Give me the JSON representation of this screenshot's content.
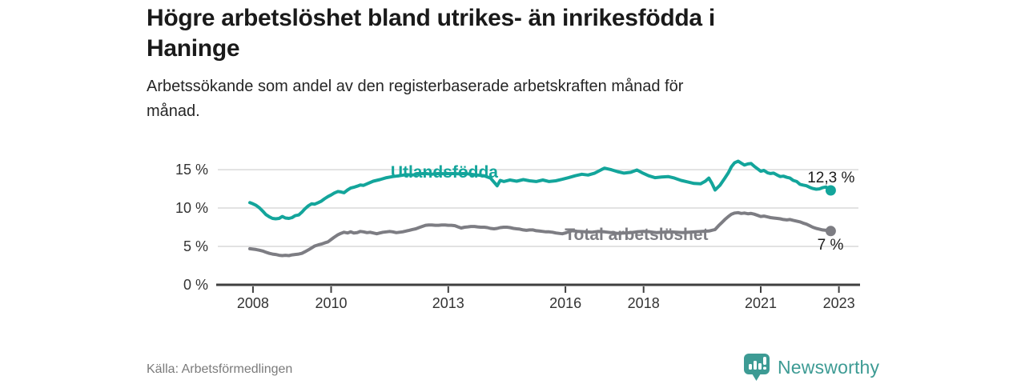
{
  "header": {
    "title_lines": [
      "Högre arbetslöshet bland utrikes- än inrikesfödda i",
      "Haninge"
    ],
    "subtitle_lines": [
      "Arbetssökande som andel av den registerbaserade arbetskraften månad för",
      "månad."
    ]
  },
  "footer": {
    "source": "Källa: Arbetsförmedlingen",
    "brand": "Newsworthy",
    "logo_icon": "bar-chart-speech-bubble-icon"
  },
  "colors": {
    "accent_teal": "#13a59b",
    "series_gray": "#7d7d83",
    "grid": "#d9d9d9",
    "axis": "#3f3f3f",
    "tick_text": "#333333",
    "value_label_text": "#1a1a1a",
    "source_text": "#7b7b7b",
    "brand_teal": "#3d9b94"
  },
  "chart_data": {
    "type": "line",
    "title": "",
    "xlabel": "",
    "ylabel": "",
    "x_unit": "year (monthly series)",
    "xlim": [
      2007.1,
      2023.5
    ],
    "ylim": [
      0,
      17.3
    ],
    "grid": "horizontal",
    "legend_position": "inline-labels",
    "x_ticks": [
      2008,
      2010,
      2013,
      2016,
      2018,
      2021,
      2023
    ],
    "x_tick_labels": [
      "2008",
      "2010",
      "2013",
      "2016",
      "2018",
      "2021",
      "2023"
    ],
    "y_ticks": [
      0,
      5,
      10,
      15
    ],
    "y_tick_labels": [
      "0 %",
      "5 %",
      "10 %",
      "15 %"
    ],
    "series": [
      {
        "name": "Utlandsfödda",
        "color": "#13a59b",
        "end_label": "12,3 %",
        "end_value": 12.3,
        "label_pos": [
          2012.9,
          13.95
        ],
        "end_label_offset": [
          30,
          -10
        ],
        "points": [
          [
            2007.92,
            10.7
          ],
          [
            2008.0,
            10.55
          ],
          [
            2008.08,
            10.35
          ],
          [
            2008.17,
            10.0
          ],
          [
            2008.25,
            9.6
          ],
          [
            2008.33,
            9.15
          ],
          [
            2008.42,
            8.85
          ],
          [
            2008.5,
            8.65
          ],
          [
            2008.58,
            8.6
          ],
          [
            2008.67,
            8.65
          ],
          [
            2008.75,
            8.9
          ],
          [
            2008.83,
            8.7
          ],
          [
            2008.92,
            8.65
          ],
          [
            2009.0,
            8.75
          ],
          [
            2009.08,
            9.0
          ],
          [
            2009.17,
            9.1
          ],
          [
            2009.25,
            9.45
          ],
          [
            2009.33,
            9.9
          ],
          [
            2009.42,
            10.3
          ],
          [
            2009.5,
            10.55
          ],
          [
            2009.58,
            10.5
          ],
          [
            2009.67,
            10.7
          ],
          [
            2009.75,
            10.9
          ],
          [
            2009.83,
            11.2
          ],
          [
            2009.92,
            11.5
          ],
          [
            2010.0,
            11.7
          ],
          [
            2010.08,
            11.95
          ],
          [
            2010.17,
            12.15
          ],
          [
            2010.25,
            12.1
          ],
          [
            2010.33,
            12.0
          ],
          [
            2010.42,
            12.35
          ],
          [
            2010.5,
            12.6
          ],
          [
            2010.58,
            12.7
          ],
          [
            2010.67,
            12.85
          ],
          [
            2010.75,
            13.0
          ],
          [
            2010.83,
            12.95
          ],
          [
            2010.92,
            13.15
          ],
          [
            2011.08,
            13.5
          ],
          [
            2011.25,
            13.7
          ],
          [
            2011.42,
            13.95
          ],
          [
            2011.58,
            14.1
          ],
          [
            2011.75,
            14.2
          ],
          [
            2011.92,
            14.35
          ],
          [
            2012.08,
            14.3
          ],
          [
            2012.25,
            14.45
          ],
          [
            2012.42,
            14.5
          ],
          [
            2012.58,
            14.4
          ],
          [
            2012.75,
            14.5
          ],
          [
            2012.92,
            14.45
          ],
          [
            2013.08,
            14.5
          ],
          [
            2013.25,
            14.45
          ],
          [
            2013.42,
            14.5
          ],
          [
            2013.58,
            14.4
          ],
          [
            2013.75,
            14.3
          ],
          [
            2013.92,
            14.2
          ],
          [
            2014.08,
            13.9
          ],
          [
            2014.25,
            12.9
          ],
          [
            2014.33,
            13.6
          ],
          [
            2014.42,
            13.45
          ],
          [
            2014.58,
            13.65
          ],
          [
            2014.75,
            13.5
          ],
          [
            2014.92,
            13.7
          ],
          [
            2015.08,
            13.55
          ],
          [
            2015.25,
            13.45
          ],
          [
            2015.42,
            13.65
          ],
          [
            2015.58,
            13.45
          ],
          [
            2015.75,
            13.55
          ],
          [
            2015.92,
            13.75
          ],
          [
            2016.08,
            13.95
          ],
          [
            2016.25,
            14.2
          ],
          [
            2016.42,
            14.4
          ],
          [
            2016.58,
            14.3
          ],
          [
            2016.75,
            14.55
          ],
          [
            2016.92,
            15.0
          ],
          [
            2017.0,
            15.2
          ],
          [
            2017.17,
            15.0
          ],
          [
            2017.33,
            14.75
          ],
          [
            2017.5,
            14.55
          ],
          [
            2017.67,
            14.65
          ],
          [
            2017.83,
            14.95
          ],
          [
            2017.96,
            14.6
          ],
          [
            2018.13,
            14.2
          ],
          [
            2018.29,
            13.95
          ],
          [
            2018.46,
            14.05
          ],
          [
            2018.63,
            14.1
          ],
          [
            2018.79,
            13.9
          ],
          [
            2018.96,
            13.6
          ],
          [
            2019.13,
            13.4
          ],
          [
            2019.29,
            13.2
          ],
          [
            2019.46,
            13.15
          ],
          [
            2019.58,
            13.5
          ],
          [
            2019.67,
            13.9
          ],
          [
            2019.75,
            13.2
          ],
          [
            2019.83,
            12.35
          ],
          [
            2019.96,
            13.0
          ],
          [
            2020.08,
            13.9
          ],
          [
            2020.17,
            14.6
          ],
          [
            2020.25,
            15.4
          ],
          [
            2020.33,
            15.9
          ],
          [
            2020.42,
            16.1
          ],
          [
            2020.5,
            15.85
          ],
          [
            2020.58,
            15.6
          ],
          [
            2020.67,
            15.75
          ],
          [
            2020.75,
            15.8
          ],
          [
            2020.83,
            15.45
          ],
          [
            2020.92,
            15.1
          ],
          [
            2021.0,
            14.8
          ],
          [
            2021.08,
            14.9
          ],
          [
            2021.17,
            14.6
          ],
          [
            2021.25,
            14.5
          ],
          [
            2021.33,
            14.55
          ],
          [
            2021.42,
            14.3
          ],
          [
            2021.5,
            14.1
          ],
          [
            2021.58,
            14.15
          ],
          [
            2021.67,
            14.0
          ],
          [
            2021.75,
            13.9
          ],
          [
            2021.83,
            13.6
          ],
          [
            2021.92,
            13.45
          ],
          [
            2022.0,
            13.1
          ],
          [
            2022.08,
            13.0
          ],
          [
            2022.17,
            12.9
          ],
          [
            2022.25,
            12.7
          ],
          [
            2022.33,
            12.55
          ],
          [
            2022.42,
            12.45
          ],
          [
            2022.5,
            12.5
          ],
          [
            2022.58,
            12.65
          ],
          [
            2022.67,
            12.75
          ],
          [
            2022.73,
            12.5
          ],
          [
            2022.79,
            12.3
          ]
        ]
      },
      {
        "name": "Total arbetslöshet",
        "color": "#7d7d83",
        "end_label": "7 %",
        "end_value": 7.0,
        "label_pos": [
          2017.82,
          5.83
        ],
        "end_label_offset": [
          16,
          23
        ],
        "points": [
          [
            2007.92,
            4.7
          ],
          [
            2008.0,
            4.65
          ],
          [
            2008.08,
            4.6
          ],
          [
            2008.17,
            4.5
          ],
          [
            2008.25,
            4.4
          ],
          [
            2008.33,
            4.25
          ],
          [
            2008.42,
            4.1
          ],
          [
            2008.5,
            4.0
          ],
          [
            2008.58,
            3.95
          ],
          [
            2008.67,
            3.85
          ],
          [
            2008.75,
            3.8
          ],
          [
            2008.83,
            3.85
          ],
          [
            2008.92,
            3.8
          ],
          [
            2009.0,
            3.9
          ],
          [
            2009.08,
            3.95
          ],
          [
            2009.17,
            4.0
          ],
          [
            2009.25,
            4.1
          ],
          [
            2009.33,
            4.3
          ],
          [
            2009.42,
            4.55
          ],
          [
            2009.5,
            4.8
          ],
          [
            2009.58,
            5.05
          ],
          [
            2009.67,
            5.2
          ],
          [
            2009.75,
            5.3
          ],
          [
            2009.83,
            5.45
          ],
          [
            2009.92,
            5.6
          ],
          [
            2010.0,
            5.9
          ],
          [
            2010.08,
            6.2
          ],
          [
            2010.17,
            6.5
          ],
          [
            2010.25,
            6.7
          ],
          [
            2010.33,
            6.85
          ],
          [
            2010.42,
            6.75
          ],
          [
            2010.5,
            6.9
          ],
          [
            2010.58,
            6.75
          ],
          [
            2010.67,
            6.8
          ],
          [
            2010.75,
            6.95
          ],
          [
            2010.83,
            6.9
          ],
          [
            2010.92,
            6.8
          ],
          [
            2011.0,
            6.85
          ],
          [
            2011.08,
            6.75
          ],
          [
            2011.17,
            6.65
          ],
          [
            2011.25,
            6.75
          ],
          [
            2011.33,
            6.85
          ],
          [
            2011.42,
            6.9
          ],
          [
            2011.5,
            6.95
          ],
          [
            2011.58,
            6.9
          ],
          [
            2011.67,
            6.8
          ],
          [
            2011.75,
            6.85
          ],
          [
            2011.83,
            6.9
          ],
          [
            2011.92,
            7.0
          ],
          [
            2012.0,
            7.1
          ],
          [
            2012.08,
            7.2
          ],
          [
            2012.17,
            7.3
          ],
          [
            2012.25,
            7.45
          ],
          [
            2012.33,
            7.6
          ],
          [
            2012.42,
            7.75
          ],
          [
            2012.5,
            7.8
          ],
          [
            2012.58,
            7.8
          ],
          [
            2012.67,
            7.75
          ],
          [
            2012.75,
            7.75
          ],
          [
            2012.83,
            7.8
          ],
          [
            2012.92,
            7.8
          ],
          [
            2013.0,
            7.75
          ],
          [
            2013.08,
            7.75
          ],
          [
            2013.17,
            7.7
          ],
          [
            2013.25,
            7.55
          ],
          [
            2013.33,
            7.4
          ],
          [
            2013.42,
            7.5
          ],
          [
            2013.5,
            7.55
          ],
          [
            2013.58,
            7.6
          ],
          [
            2013.67,
            7.6
          ],
          [
            2013.75,
            7.55
          ],
          [
            2013.83,
            7.5
          ],
          [
            2013.92,
            7.5
          ],
          [
            2014.0,
            7.45
          ],
          [
            2014.08,
            7.35
          ],
          [
            2014.17,
            7.3
          ],
          [
            2014.25,
            7.35
          ],
          [
            2014.33,
            7.45
          ],
          [
            2014.42,
            7.5
          ],
          [
            2014.5,
            7.5
          ],
          [
            2014.58,
            7.45
          ],
          [
            2014.67,
            7.35
          ],
          [
            2014.75,
            7.3
          ],
          [
            2014.83,
            7.25
          ],
          [
            2014.92,
            7.15
          ],
          [
            2015.0,
            7.1
          ],
          [
            2015.08,
            7.15
          ],
          [
            2015.17,
            7.15
          ],
          [
            2015.25,
            7.05
          ],
          [
            2015.33,
            7.0
          ],
          [
            2015.42,
            6.95
          ],
          [
            2015.5,
            6.9
          ],
          [
            2015.58,
            6.9
          ],
          [
            2015.67,
            6.85
          ],
          [
            2015.75,
            6.75
          ],
          [
            2015.83,
            6.7
          ],
          [
            2015.92,
            6.65
          ],
          [
            2016.0,
            6.75
          ],
          [
            2016.08,
            6.9
          ],
          [
            2016.17,
            7.05
          ],
          [
            2016.25,
            7.0
          ],
          [
            2016.33,
            6.95
          ],
          [
            2016.5,
            6.9
          ],
          [
            2016.67,
            6.85
          ],
          [
            2016.83,
            6.95
          ],
          [
            2017.0,
            6.9
          ],
          [
            2017.17,
            6.8
          ],
          [
            2017.33,
            6.7
          ],
          [
            2017.5,
            6.75
          ],
          [
            2017.67,
            6.8
          ],
          [
            2017.83,
            6.9
          ],
          [
            2018.0,
            6.95
          ],
          [
            2018.17,
            6.9
          ],
          [
            2018.33,
            6.8
          ],
          [
            2018.5,
            6.85
          ],
          [
            2018.67,
            6.9
          ],
          [
            2018.83,
            6.85
          ],
          [
            2019.0,
            6.8
          ],
          [
            2019.17,
            6.85
          ],
          [
            2019.33,
            6.9
          ],
          [
            2019.5,
            6.95
          ],
          [
            2019.67,
            7.0
          ],
          [
            2019.83,
            7.2
          ],
          [
            2019.92,
            7.7
          ],
          [
            2020.0,
            8.1
          ],
          [
            2020.08,
            8.5
          ],
          [
            2020.17,
            8.9
          ],
          [
            2020.25,
            9.2
          ],
          [
            2020.33,
            9.35
          ],
          [
            2020.42,
            9.4
          ],
          [
            2020.5,
            9.3
          ],
          [
            2020.58,
            9.35
          ],
          [
            2020.67,
            9.25
          ],
          [
            2020.75,
            9.3
          ],
          [
            2020.83,
            9.2
          ],
          [
            2020.92,
            9.05
          ],
          [
            2021.0,
            8.9
          ],
          [
            2021.08,
            8.95
          ],
          [
            2021.17,
            8.85
          ],
          [
            2021.25,
            8.75
          ],
          [
            2021.33,
            8.7
          ],
          [
            2021.42,
            8.65
          ],
          [
            2021.5,
            8.6
          ],
          [
            2021.58,
            8.5
          ],
          [
            2021.67,
            8.45
          ],
          [
            2021.75,
            8.5
          ],
          [
            2021.83,
            8.4
          ],
          [
            2021.92,
            8.3
          ],
          [
            2022.0,
            8.2
          ],
          [
            2022.08,
            8.05
          ],
          [
            2022.17,
            7.9
          ],
          [
            2022.25,
            7.7
          ],
          [
            2022.33,
            7.5
          ],
          [
            2022.42,
            7.35
          ],
          [
            2022.5,
            7.25
          ],
          [
            2022.58,
            7.15
          ],
          [
            2022.67,
            7.1
          ],
          [
            2022.73,
            7.15
          ],
          [
            2022.79,
            7.0
          ]
        ]
      }
    ]
  }
}
